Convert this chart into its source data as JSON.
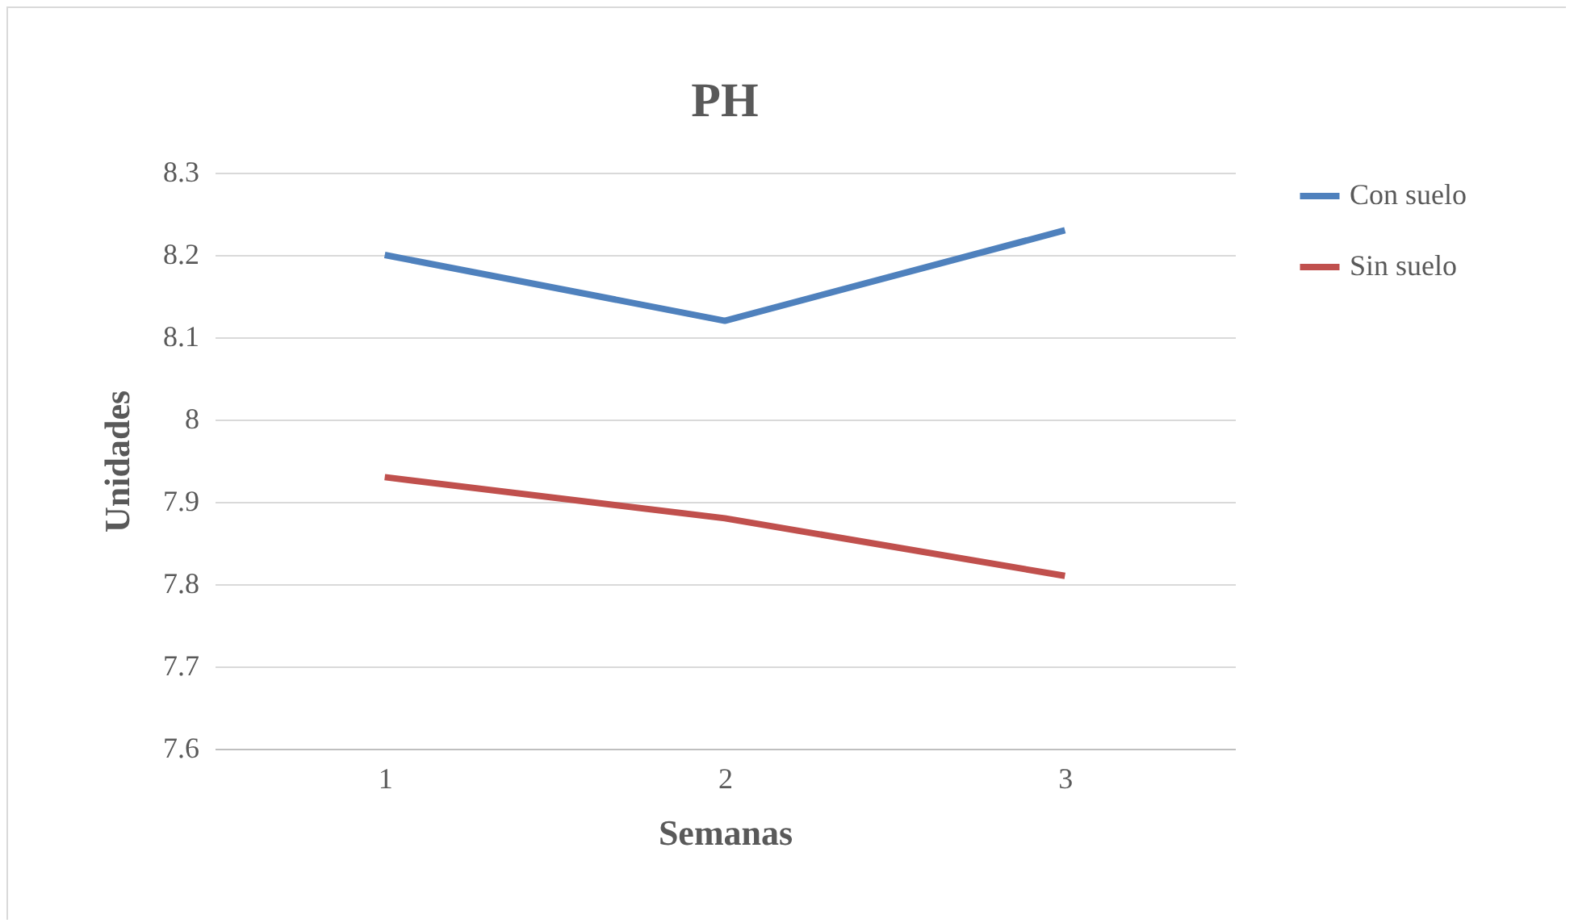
{
  "chart_data": {
    "type": "line",
    "title": "PH",
    "xlabel": "Semanas",
    "ylabel": "Unidades",
    "categories": [
      "1",
      "2",
      "3"
    ],
    "series": [
      {
        "name": "Con suelo",
        "color": "#4f81bd",
        "values": [
          8.2,
          8.12,
          8.23
        ]
      },
      {
        "name": "Sin suelo",
        "color": "#c0504d",
        "values": [
          7.93,
          7.88,
          7.81
        ]
      }
    ],
    "ylim": [
      7.6,
      8.3
    ],
    "yticks": [
      7.6,
      7.7,
      7.8,
      7.9,
      8,
      8.1,
      8.2,
      8.3
    ],
    "grid": "y",
    "legend": "right",
    "marker": "none",
    "line_style": "solid"
  }
}
